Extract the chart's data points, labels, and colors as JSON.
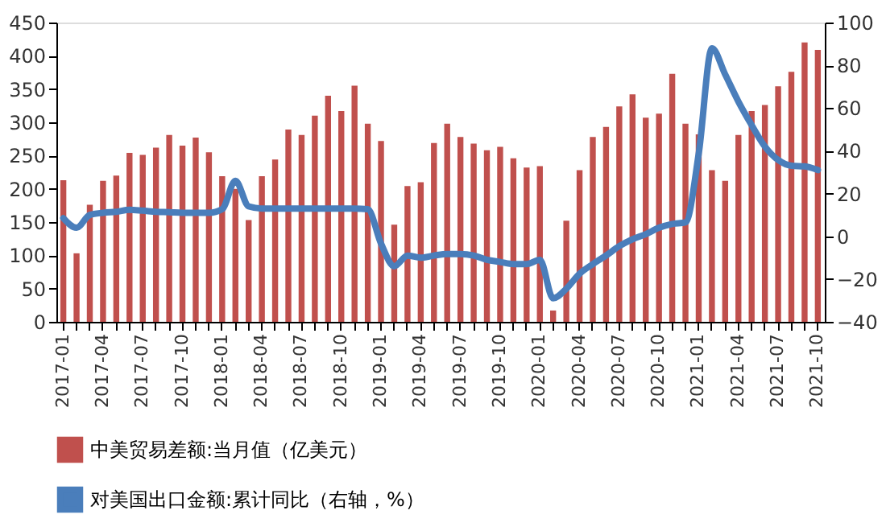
{
  "chart_data": {
    "type": "bar",
    "categories": [
      "2017-01",
      null,
      null,
      "2017-04",
      null,
      null,
      "2017-07",
      null,
      null,
      "2017-10",
      null,
      null,
      "2018-01",
      null,
      null,
      "2018-04",
      null,
      null,
      "2018-07",
      null,
      null,
      "2018-10",
      null,
      null,
      "2019-01",
      null,
      null,
      "2019-04",
      null,
      null,
      "2019-07",
      null,
      null,
      "2019-10",
      null,
      null,
      "2020-01",
      null,
      null,
      "2020-04",
      null,
      null,
      "2020-07",
      null,
      null,
      "2020-10",
      null,
      null,
      "2021-01",
      null,
      null,
      "2021-04",
      null,
      null,
      "2021-07",
      null,
      null,
      "2021-10"
    ],
    "series": [
      {
        "name": "中美贸易差额:当月值（亿美元）",
        "color": "#c0504d",
        "values": [
          213,
          103,
          176,
          212,
          220,
          254,
          251,
          262,
          281,
          265,
          277,
          255,
          219,
          200,
          153,
          219,
          244,
          289,
          281,
          310,
          340,
          317,
          355,
          298,
          272,
          146,
          204,
          210,
          269,
          298,
          278,
          268,
          258,
          263,
          246,
          232,
          234,
          17,
          152,
          228,
          278,
          293,
          324,
          342,
          307,
          313,
          373,
          298,
          282,
          228,
          212,
          281,
          317,
          326,
          354,
          376,
          420,
          409
        ]
      },
      {
        "name": "对美国出口金额:累计同比（右轴，%）",
        "type": "line",
        "axis": "y2",
        "color": "#4a7ebb",
        "values": [
          8.5,
          4,
          10,
          11,
          11.5,
          12.4,
          12,
          11.5,
          11.3,
          11,
          11,
          11,
          12.7,
          26,
          14,
          13,
          13,
          13,
          13,
          13,
          13,
          13,
          13,
          12.7,
          -3.4,
          -14,
          -9,
          -10,
          -9,
          -8.3,
          -8.3,
          -9,
          -11,
          -12,
          -13,
          -13,
          -11,
          -29,
          -24.5,
          -17.5,
          -13,
          -9,
          -4.6,
          -1.4,
          1,
          4,
          5.8,
          6.5,
          38.6,
          88,
          75.7,
          63,
          52,
          42,
          35.7,
          33,
          32.7,
          31
        ]
      }
    ],
    "ylim": [
      0,
      450
    ],
    "yticks": [
      0,
      50,
      100,
      150,
      200,
      250,
      300,
      350,
      400,
      450
    ],
    "y2lim": [
      -40,
      100
    ],
    "y2ticks": [
      -40,
      -20,
      0,
      20,
      40,
      60,
      80,
      100
    ],
    "grid": false,
    "legend": "bottom",
    "marker": "none",
    "line_style": "solid"
  }
}
